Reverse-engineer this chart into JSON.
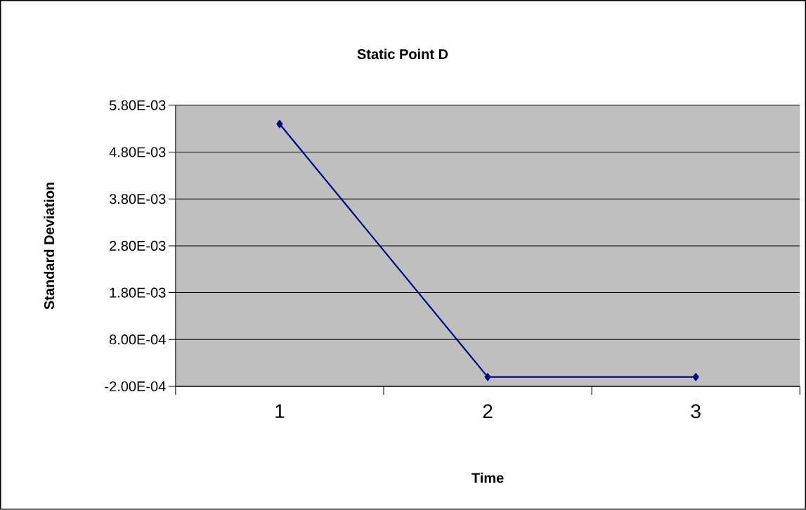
{
  "chart_data": {
    "type": "line",
    "title": "Static Point D",
    "xlabel": "Time",
    "ylabel": "Standard Deviation",
    "categories": [
      "1",
      "2",
      "3"
    ],
    "series": [
      {
        "color": "#000080",
        "values": [
          0.0054,
          0.0,
          0.0
        ]
      }
    ],
    "ylim": [
      -0.0002,
      0.0058
    ],
    "yticks": [
      {
        "value": -0.0002,
        "label": "-2.00E-04"
      },
      {
        "value": 0.0008,
        "label": "8.00E-04"
      },
      {
        "value": 0.0018,
        "label": "1.80E-03"
      },
      {
        "value": 0.0028,
        "label": "2.80E-03"
      },
      {
        "value": 0.0038,
        "label": "3.80E-03"
      },
      {
        "value": 0.0048,
        "label": "4.80E-03"
      },
      {
        "value": 0.0058,
        "label": "5.80E-03"
      }
    ],
    "grid": "y",
    "marker": "diamond",
    "line_style": "solid"
  }
}
